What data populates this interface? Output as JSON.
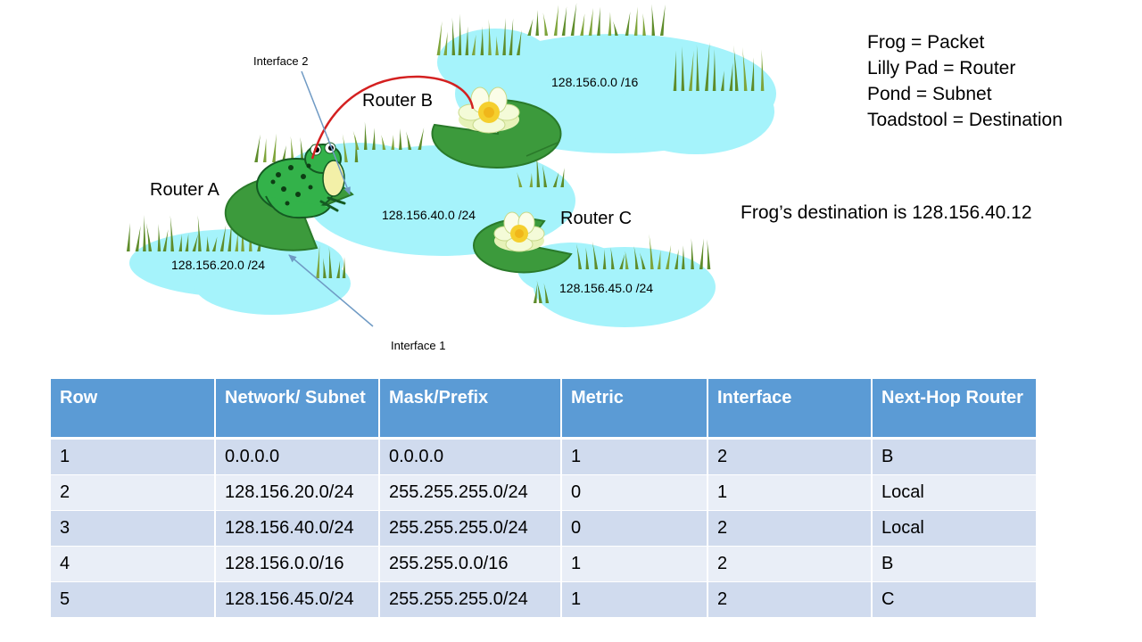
{
  "diagram": {
    "routers": [
      {
        "id": "A",
        "label": "Router A"
      },
      {
        "id": "B",
        "label": "Router B"
      },
      {
        "id": "C",
        "label": "Router C"
      }
    ],
    "subnets": [
      {
        "id": "s20",
        "label": "128.156.20.0 /24"
      },
      {
        "id": "s40",
        "label": "128.156.40.0 /24"
      },
      {
        "id": "s0",
        "label": "128.156.0.0 /16"
      },
      {
        "id": "s45",
        "label": "128.156.45.0 /24"
      }
    ],
    "interfaces": [
      {
        "id": "if1",
        "label": "Interface 1"
      },
      {
        "id": "if2",
        "label": "Interface 2"
      }
    ],
    "colors": {
      "pond": "#a5f3fb",
      "lily_pad": "#3c9a3c",
      "reed": "#5e8c2a",
      "path": "#d42020",
      "arrow": "#6f9ac4",
      "frog": "#33b24a"
    }
  },
  "legend": [
    "Frog = Packet",
    "Lilly Pad = Router",
    "Pond = Subnet",
    "Toadstool = Destination"
  ],
  "destination_text": "Frog’s destination is 128.156.40.12",
  "table": {
    "headers": [
      "Row",
      "Network/ Subnet",
      "Mask/Prefix",
      "Metric",
      "Interface",
      "Next-Hop Router"
    ],
    "rows": [
      [
        "1",
        "0.0.0.0",
        "0.0.0.0",
        "1",
        "2",
        "B"
      ],
      [
        "2",
        "128.156.20.0/24",
        "255.255.255.0/24",
        "0",
        "1",
        "Local"
      ],
      [
        "3",
        "128.156.40.0/24",
        "255.255.255.0/24",
        "0",
        "2",
        "Local"
      ],
      [
        "4",
        "128.156.0.0/16",
        "255.255.0.0/16",
        "1",
        "2",
        "B"
      ],
      [
        "5",
        "128.156.45.0/24",
        "255.255.255.0/24",
        "1",
        "2",
        "C"
      ]
    ]
  }
}
